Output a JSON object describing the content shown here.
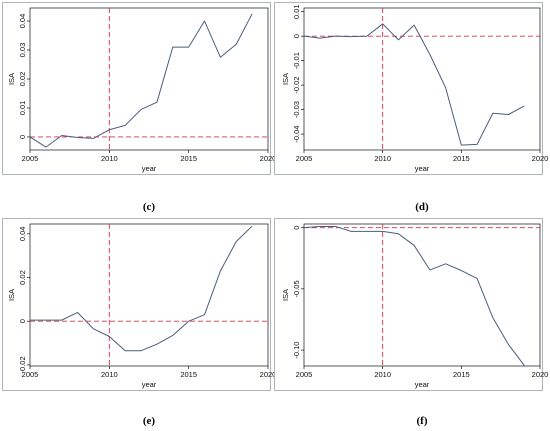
{
  "chart_data": [
    {
      "type": "line",
      "caption": "(c)",
      "xlabel": "year",
      "ylabel": "ISA",
      "xlim": [
        2005,
        2020
      ],
      "ylim": [
        -0.0045,
        0.0445
      ],
      "xticks": [
        "2005",
        "2010",
        "2015",
        "2020"
      ],
      "yticks": [
        "0",
        "0.01",
        "0.02",
        "0.03",
        "0.04"
      ],
      "x": [
        2005,
        2006,
        2007,
        2008,
        2009,
        2010,
        2011,
        2012,
        2013,
        2014,
        2015,
        2016,
        2017,
        2018,
        2019
      ],
      "values": [
        0.0,
        -0.0035,
        0.0005,
        -0.0002,
        -0.0005,
        0.0025,
        0.004,
        0.0095,
        0.012,
        0.031,
        0.031,
        0.04,
        0.0275,
        0.032,
        0.0425
      ],
      "vline": 2010,
      "hline": 0,
      "grid": false,
      "line_color": "#4a5e78",
      "ref_color": "#d9304a"
    },
    {
      "type": "line",
      "caption": "(d)",
      "xlabel": "year",
      "ylabel": "ISA",
      "xlim": [
        2005,
        2020
      ],
      "ylim": [
        -0.0465,
        0.0115
      ],
      "xticks": [
        "2005",
        "2010",
        "2015",
        "2020"
      ],
      "yticks": [
        "-0.04",
        "-0.03",
        "-0.02",
        "-0.01",
        "0",
        "0.01"
      ],
      "x": [
        2005,
        2006,
        2007,
        2008,
        2009,
        2010,
        2011,
        2012,
        2013,
        2014,
        2015,
        2016,
        2017,
        2018,
        2019
      ],
      "values": [
        0.0,
        -0.0008,
        0.0,
        -0.0002,
        0.0,
        0.005,
        -0.0015,
        0.0045,
        -0.0075,
        -0.021,
        -0.0445,
        -0.0442,
        -0.0315,
        -0.032,
        -0.0285
      ],
      "vline": 2010,
      "hline": 0,
      "grid": false,
      "line_color": "#4a5e78",
      "ref_color": "#d9304a"
    },
    {
      "type": "line",
      "caption": "(e)",
      "xlabel": "year",
      "ylabel": "ISA",
      "xlim": [
        2005,
        2020
      ],
      "ylim": [
        -0.0205,
        0.0445
      ],
      "xticks": [
        "2005",
        "2010",
        "2015",
        "2020"
      ],
      "yticks": [
        "-0.02",
        "0",
        "0.02",
        "0.04"
      ],
      "x": [
        2005,
        2006,
        2007,
        2008,
        2009,
        2010,
        2011,
        2012,
        2013,
        2014,
        2015,
        2016,
        2017,
        2018,
        2019
      ],
      "values": [
        0.0005,
        0.0005,
        0.0005,
        0.004,
        -0.0035,
        -0.007,
        -0.0135,
        -0.0135,
        -0.0105,
        -0.0065,
        0.0,
        0.003,
        0.023,
        0.0365,
        0.0435
      ],
      "vline": 2010,
      "hline": 0,
      "grid": false,
      "line_color": "#4a5e78",
      "ref_color": "#d9304a"
    },
    {
      "type": "line",
      "caption": "(f)",
      "xlabel": "year",
      "ylabel": "ISA",
      "xlim": [
        2005,
        2020
      ],
      "ylim": [
        -0.113,
        0.003
      ],
      "xticks": [
        "2005",
        "2010",
        "2015",
        "2020"
      ],
      "yticks": [
        "-0.10",
        "-0.05",
        "0"
      ],
      "x": [
        2005,
        2006,
        2007,
        2008,
        2009,
        2010,
        2011,
        2012,
        2013,
        2014,
        2015,
        2016,
        2017,
        2018,
        2019
      ],
      "values": [
        0.0,
        0.001,
        0.001,
        -0.003,
        -0.003,
        -0.003,
        -0.005,
        -0.0145,
        -0.0345,
        -0.0295,
        -0.035,
        -0.0415,
        -0.0735,
        -0.0955,
        -0.1125
      ],
      "vline": 2010,
      "hline": 0,
      "grid": false,
      "line_color": "#4a5e78",
      "ref_color": "#d9304a"
    }
  ]
}
